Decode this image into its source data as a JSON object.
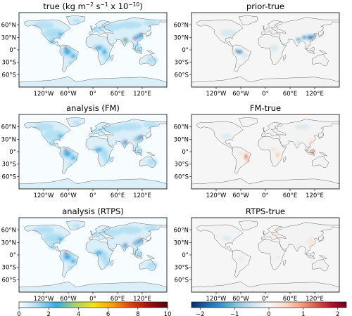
{
  "chart_data": {
    "type": "heatmap",
    "layout": "3 rows x 2 columns of global maps with two shared colorbars",
    "panels": [
      {
        "id": "true",
        "title": "true (kg m",
        "title_sup1": "−2",
        "title_mid": " s",
        "title_sup2": "−1",
        "title_end": " x 10",
        "title_sup3": "−10",
        "title_close": ")",
        "colormap": "emissions",
        "emphasis": 1.0
      },
      {
        "id": "prior-true",
        "title": "prior-true",
        "colormap": "difference",
        "pattern": "prior"
      },
      {
        "id": "analysis-fm",
        "title": "analysis (FM)",
        "colormap": "emissions",
        "emphasis": 0.85
      },
      {
        "id": "fm-true",
        "title": "FM-true",
        "colormap": "difference",
        "pattern": "fm"
      },
      {
        "id": "analysis-rtps",
        "title": "analysis (RTPS)",
        "colormap": "emissions",
        "emphasis": 0.9
      },
      {
        "id": "rtps-true",
        "title": "RTPS-true",
        "colormap": "difference",
        "pattern": "rtps"
      }
    ],
    "lon_ticks": [
      "120°W",
      "60°W",
      "0°",
      "60°E",
      "120°E"
    ],
    "lon_tick_values": [
      -120,
      -60,
      0,
      60,
      120
    ],
    "lat_ticks": [
      "60°N",
      "30°N",
      "0°",
      "30°S",
      "60°S"
    ],
    "lat_tick_values": [
      60,
      30,
      0,
      -30,
      -60
    ],
    "xlim": [
      -180,
      180
    ],
    "ylim": [
      -90,
      90
    ],
    "colorbar_emissions": {
      "ticks": [
        "0",
        "2",
        "4",
        "6",
        "8",
        "10"
      ],
      "values": [
        0,
        2,
        4,
        6,
        8,
        10
      ],
      "range": [
        0,
        10
      ],
      "colors": [
        "#ffffff",
        "#a9dcf2",
        "#3aa8e0",
        "#a8d070",
        "#f2e21a",
        "#f4a20c",
        "#e0401a",
        "#a01010",
        "#4a0a0a"
      ]
    },
    "colorbar_difference": {
      "ticks": [
        "−2",
        "−1",
        "0",
        "1",
        "2"
      ],
      "values": [
        -2,
        -1,
        0,
        1,
        2
      ],
      "range": [
        -2.25,
        2.25
      ],
      "colors": [
        "#053061",
        "#2166ac",
        "#4393c3",
        "#92c5de",
        "#d1e5f0",
        "#f7f7f7",
        "#fddbc7",
        "#f4a582",
        "#d6604d",
        "#b2182b",
        "#67001f"
      ]
    }
  }
}
